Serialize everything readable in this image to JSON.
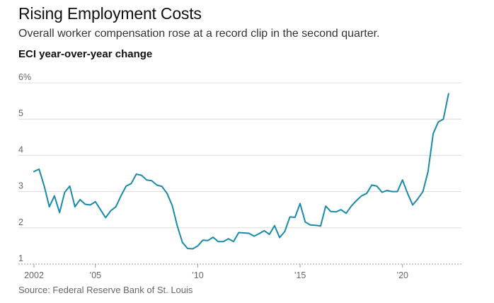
{
  "chart_data": {
    "type": "line",
    "title": "Rising Employment Costs",
    "subtitle": "Overall worker compensation rose at a record clip in the second quarter.",
    "chart_label": "ECI year-over-year change",
    "source": "Source: Federal Reserve Bank of St. Louis",
    "xlabel": "",
    "ylabel": "ECI year-over-year change",
    "ylim": [
      1,
      6
    ],
    "xlim": [
      2002.0,
      2022.5
    ],
    "grid": true,
    "color": "#1a8aa8",
    "yticks": [
      {
        "value": 6,
        "label": "6%"
      },
      {
        "value": 5,
        "label": "5"
      },
      {
        "value": 4,
        "label": "4"
      },
      {
        "value": 3,
        "label": "3"
      },
      {
        "value": 2,
        "label": "2"
      },
      {
        "value": 1,
        "label": "1"
      }
    ],
    "xticks": [
      {
        "value": 2002,
        "label": "2002"
      },
      {
        "value": 2005,
        "label": "’05"
      },
      {
        "value": 2010,
        "label": "’10"
      },
      {
        "value": 2015,
        "label": "’15"
      },
      {
        "value": 2020,
        "label": "’20"
      }
    ],
    "series": [
      {
        "name": "ECI year-over-year change",
        "x": [
          2002.0,
          2002.25,
          2002.5,
          2002.75,
          2003.0,
          2003.25,
          2003.5,
          2003.75,
          2004.0,
          2004.25,
          2004.5,
          2004.75,
          2005.0,
          2005.25,
          2005.5,
          2005.75,
          2006.0,
          2006.25,
          2006.5,
          2006.75,
          2007.0,
          2007.25,
          2007.5,
          2007.75,
          2008.0,
          2008.25,
          2008.5,
          2008.75,
          2009.0,
          2009.25,
          2009.5,
          2009.75,
          2010.0,
          2010.25,
          2010.5,
          2010.75,
          2011.0,
          2011.25,
          2011.5,
          2011.75,
          2012.0,
          2012.25,
          2012.5,
          2012.75,
          2013.0,
          2013.25,
          2013.5,
          2013.75,
          2014.0,
          2014.25,
          2014.5,
          2014.75,
          2015.0,
          2015.25,
          2015.5,
          2015.75,
          2016.0,
          2016.25,
          2016.5,
          2016.75,
          2017.0,
          2017.25,
          2017.5,
          2017.75,
          2018.0,
          2018.25,
          2018.5,
          2018.75,
          2019.0,
          2019.25,
          2019.5,
          2019.75,
          2020.0,
          2020.25,
          2020.5,
          2020.75,
          2021.0,
          2021.25,
          2021.5,
          2021.75,
          2022.0,
          2022.25
        ],
        "values": [
          3.55,
          3.62,
          3.15,
          2.58,
          2.88,
          2.42,
          2.98,
          3.15,
          2.58,
          2.78,
          2.65,
          2.63,
          2.72,
          2.5,
          2.28,
          2.47,
          2.58,
          2.88,
          3.15,
          3.22,
          3.48,
          3.45,
          3.32,
          3.3,
          3.18,
          3.14,
          2.95,
          2.62,
          2.05,
          1.6,
          1.43,
          1.42,
          1.5,
          1.66,
          1.65,
          1.74,
          1.62,
          1.62,
          1.7,
          1.62,
          1.87,
          1.86,
          1.85,
          1.77,
          1.84,
          1.92,
          1.82,
          2.06,
          1.73,
          1.9,
          2.3,
          2.29,
          2.67,
          2.16,
          2.08,
          2.07,
          2.05,
          2.6,
          2.45,
          2.44,
          2.5,
          2.4,
          2.6,
          2.75,
          2.88,
          2.95,
          3.18,
          3.15,
          2.98,
          3.03,
          3.0,
          3.0,
          3.32,
          2.95,
          2.63,
          2.8,
          3.0,
          3.55,
          4.6,
          4.92,
          5.0,
          5.7
        ]
      }
    ]
  }
}
